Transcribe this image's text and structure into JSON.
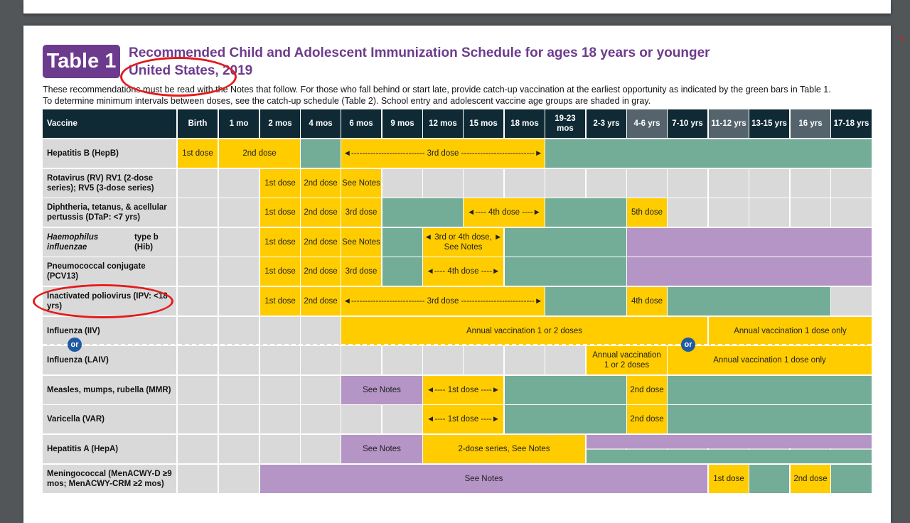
{
  "badge": "Table 1",
  "title_line1": "Recommended Child and Adolescent Immunization Schedule for ages 18 years or younger",
  "title_line2": "United States, 2019",
  "intro_line1": "These recommendations must be read with the Notes that follow. For those who fall behind or start late, provide catch-up vaccination at the earliest opportunity as indicated by the green bars in Table 1.",
  "intro_line2": "To determine minimum intervals between doses, see the catch-up schedule (Table 2). School entry and adolescent vaccine age groups are shaded in gray.",
  "table": {
    "vaccine_header": "Vaccine",
    "age_headers": [
      "Birth",
      "1 mo",
      "2 mos",
      "4 mos",
      "6 mos",
      "9 mos",
      "12 mos",
      "15 mos",
      "18 mos",
      "19-23 mos",
      "2-3 yrs",
      "4-6 yrs",
      "7-10 yrs",
      "11-12 yrs",
      "13-15 yrs",
      "16 yrs",
      "17-18 yrs"
    ],
    "shaded_headers": [
      11,
      13,
      15
    ],
    "rows": [
      {
        "name": "Hepatitis B (HepB)",
        "bars": [
          {
            "from": 0,
            "to": 0,
            "color": "y",
            "text": "1st dose"
          },
          {
            "from": 1,
            "to": 2,
            "color": "y",
            "text": "2nd dose"
          },
          {
            "from": 3,
            "to": 3,
            "color": "g",
            "text": ""
          },
          {
            "from": 4,
            "to": 8,
            "color": "y",
            "text": "◄--------------------------- 3rd dose ---------------------------►"
          },
          {
            "from": 9,
            "to": 16,
            "color": "g",
            "text": ""
          }
        ]
      },
      {
        "name": "Rotavirus (RV) RV1 (2-dose series); RV5 (3-dose series)",
        "bars": [
          {
            "from": 2,
            "to": 2,
            "color": "y",
            "text": "1st dose"
          },
          {
            "from": 3,
            "to": 3,
            "color": "y",
            "text": "2nd dose"
          },
          {
            "from": 4,
            "to": 4,
            "color": "y",
            "text": "See Notes"
          }
        ]
      },
      {
        "name": "Diphtheria, tetanus, & acellular pertussis (DTaP: <7 yrs)",
        "bars": [
          {
            "from": 2,
            "to": 2,
            "color": "y",
            "text": "1st dose"
          },
          {
            "from": 3,
            "to": 3,
            "color": "y",
            "text": "2nd dose"
          },
          {
            "from": 4,
            "to": 4,
            "color": "y",
            "text": "3rd dose"
          },
          {
            "from": 5,
            "to": 6,
            "color": "g",
            "text": ""
          },
          {
            "from": 7,
            "to": 8,
            "color": "y",
            "text": "◄---- 4th dose ----►"
          },
          {
            "from": 9,
            "to": 10,
            "color": "g",
            "text": ""
          },
          {
            "from": 11,
            "to": 11,
            "color": "y",
            "text": "5th dose"
          }
        ]
      },
      {
        "name": "Haemophilus influenzae type b (Hib)",
        "bars": [
          {
            "from": 2,
            "to": 2,
            "color": "y",
            "text": "1st dose"
          },
          {
            "from": 3,
            "to": 3,
            "color": "y",
            "text": "2nd dose"
          },
          {
            "from": 4,
            "to": 4,
            "color": "y",
            "text": "See Notes"
          },
          {
            "from": 5,
            "to": 5,
            "color": "g",
            "text": ""
          },
          {
            "from": 6,
            "to": 7,
            "color": "y",
            "text": "◄ 3rd or 4th dose, ►\nSee Notes"
          },
          {
            "from": 8,
            "to": 10,
            "color": "g",
            "text": ""
          },
          {
            "from": 11,
            "to": 16,
            "color": "p",
            "text": ""
          }
        ]
      },
      {
        "name": "Pneumococcal conjugate (PCV13)",
        "bars": [
          {
            "from": 2,
            "to": 2,
            "color": "y",
            "text": "1st dose"
          },
          {
            "from": 3,
            "to": 3,
            "color": "y",
            "text": "2nd dose"
          },
          {
            "from": 4,
            "to": 4,
            "color": "y",
            "text": "3rd dose"
          },
          {
            "from": 5,
            "to": 5,
            "color": "g",
            "text": ""
          },
          {
            "from": 6,
            "to": 7,
            "color": "y",
            "text": "◄---- 4th dose ----►"
          },
          {
            "from": 8,
            "to": 10,
            "color": "g",
            "text": ""
          },
          {
            "from": 11,
            "to": 16,
            "color": "p",
            "text": ""
          }
        ]
      },
      {
        "name": "Inactivated poliovirus (IPV: <18 yrs)",
        "bars": [
          {
            "from": 2,
            "to": 2,
            "color": "y",
            "text": "1st dose"
          },
          {
            "from": 3,
            "to": 3,
            "color": "y",
            "text": "2nd dose"
          },
          {
            "from": 4,
            "to": 8,
            "color": "y",
            "text": "◄--------------------------- 3rd dose ---------------------------►"
          },
          {
            "from": 9,
            "to": 10,
            "color": "g",
            "text": ""
          },
          {
            "from": 11,
            "to": 11,
            "color": "y",
            "text": "4th dose"
          },
          {
            "from": 12,
            "to": 15,
            "color": "g",
            "text": ""
          }
        ]
      },
      {
        "name": "Influenza (IIV)",
        "bars": [
          {
            "from": 4,
            "to": 12,
            "color": "y",
            "text": "Annual vaccination 1 or 2 doses"
          },
          {
            "from": 13,
            "to": 16,
            "color": "y",
            "text": "Annual vaccination 1 dose only"
          }
        ]
      },
      {
        "name": "Influenza (LAIV)",
        "bars": [
          {
            "from": 10,
            "to": 11,
            "color": "y",
            "text": "Annual vaccination\n1 or 2 doses"
          },
          {
            "from": 12,
            "to": 16,
            "color": "y",
            "text": "Annual vaccination 1 dose only"
          }
        ]
      },
      {
        "name": "Measles, mumps, rubella (MMR)",
        "bars": [
          {
            "from": 4,
            "to": 5,
            "color": "p",
            "text": "See Notes"
          },
          {
            "from": 6,
            "to": 7,
            "color": "y",
            "text": "◄---- 1st dose ----►"
          },
          {
            "from": 8,
            "to": 10,
            "color": "g",
            "text": ""
          },
          {
            "from": 11,
            "to": 11,
            "color": "y",
            "text": "2nd dose"
          },
          {
            "from": 12,
            "to": 16,
            "color": "g",
            "text": ""
          }
        ]
      },
      {
        "name": "Varicella (VAR)",
        "bars": [
          {
            "from": 6,
            "to": 7,
            "color": "y",
            "text": "◄---- 1st dose ----►"
          },
          {
            "from": 8,
            "to": 10,
            "color": "g",
            "text": ""
          },
          {
            "from": 11,
            "to": 11,
            "color": "y",
            "text": "2nd dose"
          },
          {
            "from": 12,
            "to": 16,
            "color": "g",
            "text": ""
          }
        ]
      },
      {
        "name": "Hepatitis A (HepA)",
        "bars": [
          {
            "from": 4,
            "to": 5,
            "color": "p",
            "text": "See Notes"
          },
          {
            "from": 6,
            "to": 9,
            "color": "y",
            "text": "2-dose series, See Notes"
          },
          {
            "from": 10,
            "to": 16,
            "color": "pg",
            "text": ""
          }
        ]
      },
      {
        "name": "Meningococcal (MenACWY-D ≥9 mos; MenACWY-CRM ≥2 mos)",
        "bars": [
          {
            "from": 2,
            "to": 12,
            "color": "p",
            "text": "See Notes"
          },
          {
            "from": 13,
            "to": 13,
            "color": "y",
            "text": "1st dose"
          },
          {
            "from": 14,
            "to": 14,
            "color": "g",
            "text": ""
          },
          {
            "from": 15,
            "to": 15,
            "color": "y",
            "text": "2nd dose"
          },
          {
            "from": 16,
            "to": 16,
            "color": "g",
            "text": ""
          }
        ]
      }
    ],
    "or_label": "or"
  },
  "colors": {
    "yellow": "#ffcc00",
    "green": "#73ad97",
    "purple": "#b594c6",
    "header": "#0f2a35",
    "annotation": "#e31b1b"
  }
}
